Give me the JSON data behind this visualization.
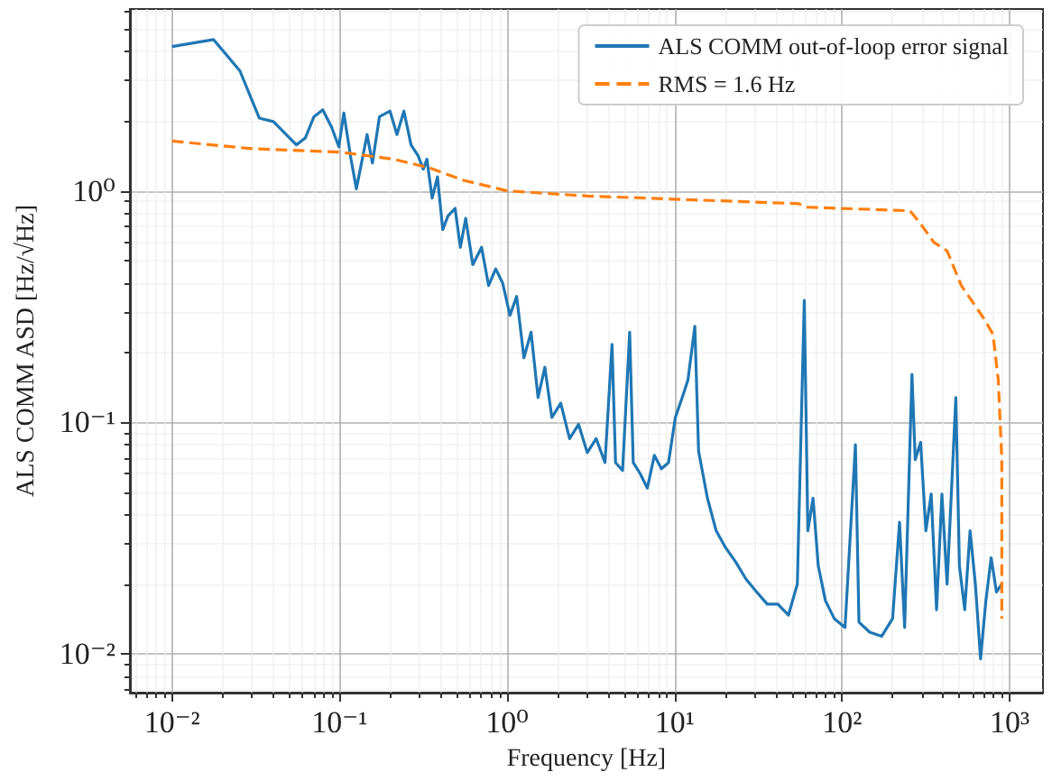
{
  "chart_data": {
    "type": "line",
    "xlabel": "Frequency [Hz]",
    "ylabel": "ALS COMM ASD [Hz/√Hz]",
    "log": "xy",
    "grid": true,
    "legend": "top right",
    "xlim": [
      0.0056,
      1580
    ],
    "ylim": [
      0.0068,
      6.1
    ],
    "xticks": [
      {
        "value": 0.01,
        "label": "10⁻²"
      },
      {
        "value": 0.1,
        "label": "10⁻¹"
      },
      {
        "value": 1,
        "label": "10⁰"
      },
      {
        "value": 10,
        "label": "10¹"
      },
      {
        "value": 100,
        "label": "10²"
      },
      {
        "value": 1000,
        "label": "10³"
      }
    ],
    "yticks": [
      {
        "value": 0.01,
        "label": "10⁻²"
      },
      {
        "value": 0.1,
        "label": "10⁻¹"
      },
      {
        "value": 1,
        "label": "10⁰"
      }
    ],
    "series": [
      {
        "name": "ALS COMM out-of-loop error signal",
        "color": "#1f77b4",
        "line_style": "solid",
        "x": [
          0.01,
          0.0177,
          0.0254,
          0.0332,
          0.0403,
          0.0552,
          0.0624,
          0.0703,
          0.0794,
          0.0897,
          0.099,
          0.106,
          0.117,
          0.126,
          0.146,
          0.157,
          0.173,
          0.2,
          0.22,
          0.242,
          0.267,
          0.294,
          0.316,
          0.332,
          0.357,
          0.384,
          0.413,
          0.444,
          0.489,
          0.526,
          0.566,
          0.624,
          0.704,
          0.775,
          0.855,
          0.94,
          1.04,
          1.14,
          1.26,
          1.39,
          1.53,
          1.68,
          1.85,
          2.09,
          2.36,
          2.67,
          3.01,
          3.4,
          3.84,
          4.23,
          4.44,
          4.89,
          5.39,
          5.66,
          6.23,
          6.87,
          7.57,
          8.34,
          9.19,
          10.1,
          11.1,
          12,
          13.2,
          13.9,
          15.7,
          17.7,
          20,
          23.1,
          26.7,
          30.9,
          35.7,
          41.3,
          47.8,
          54,
          59.4,
          62.4,
          67,
          72,
          79.4,
          89.7,
          104,
          120,
          126,
          146,
          172,
          200,
          220,
          236,
          261,
          273,
          294,
          316,
          340,
          366,
          394,
          423,
          477,
          501,
          539,
          580,
          624,
          670,
          721,
          775,
          834,
          897
        ],
        "values": [
          4.2,
          4.5,
          3.3,
          2.06,
          1.99,
          1.58,
          1.69,
          2.09,
          2.24,
          1.88,
          1.55,
          2.17,
          1.37,
          1.02,
          1.75,
          1.32,
          2.09,
          2.21,
          1.75,
          2.21,
          1.58,
          1.42,
          1.24,
          1.37,
          0.93,
          1.15,
          0.68,
          0.78,
          0.84,
          0.57,
          0.76,
          0.48,
          0.57,
          0.39,
          0.46,
          0.4,
          0.29,
          0.35,
          0.19,
          0.245,
          0.128,
          0.173,
          0.105,
          0.121,
          0.085,
          0.098,
          0.074,
          0.085,
          0.067,
          0.217,
          0.067,
          0.062,
          0.245,
          0.067,
          0.06,
          0.052,
          0.072,
          0.063,
          0.067,
          0.105,
          0.128,
          0.152,
          0.26,
          0.075,
          0.047,
          0.034,
          0.029,
          0.025,
          0.021,
          0.0185,
          0.0164,
          0.0164,
          0.0147,
          0.02,
          0.336,
          0.034,
          0.047,
          0.024,
          0.017,
          0.0142,
          0.013,
          0.08,
          0.0137,
          0.0124,
          0.0119,
          0.0142,
          0.037,
          0.013,
          0.161,
          0.069,
          0.082,
          0.034,
          0.049,
          0.0155,
          0.049,
          0.02,
          0.128,
          0.024,
          0.0155,
          0.034,
          0.02,
          0.0095,
          0.017,
          0.026,
          0.0185,
          0.02
        ]
      },
      {
        "name": "RMS = 1.6 Hz",
        "color": "#ff7f0e",
        "line_style": "dashed",
        "x": [
          0.01,
          0.0301,
          0.101,
          0.21,
          0.34,
          0.55,
          1,
          3.01,
          10.1,
          55.2,
          60.8,
          254,
          294,
          352,
          423,
          514,
          703,
          795,
          855,
          897,
          897
        ],
        "values": [
          1.64,
          1.52,
          1.47,
          1.37,
          1.26,
          1.11,
          1.0,
          0.95,
          0.92,
          0.88,
          0.85,
          0.82,
          0.72,
          0.6,
          0.55,
          0.39,
          0.28,
          0.24,
          0.152,
          0.069,
          0.0142
        ]
      }
    ]
  }
}
